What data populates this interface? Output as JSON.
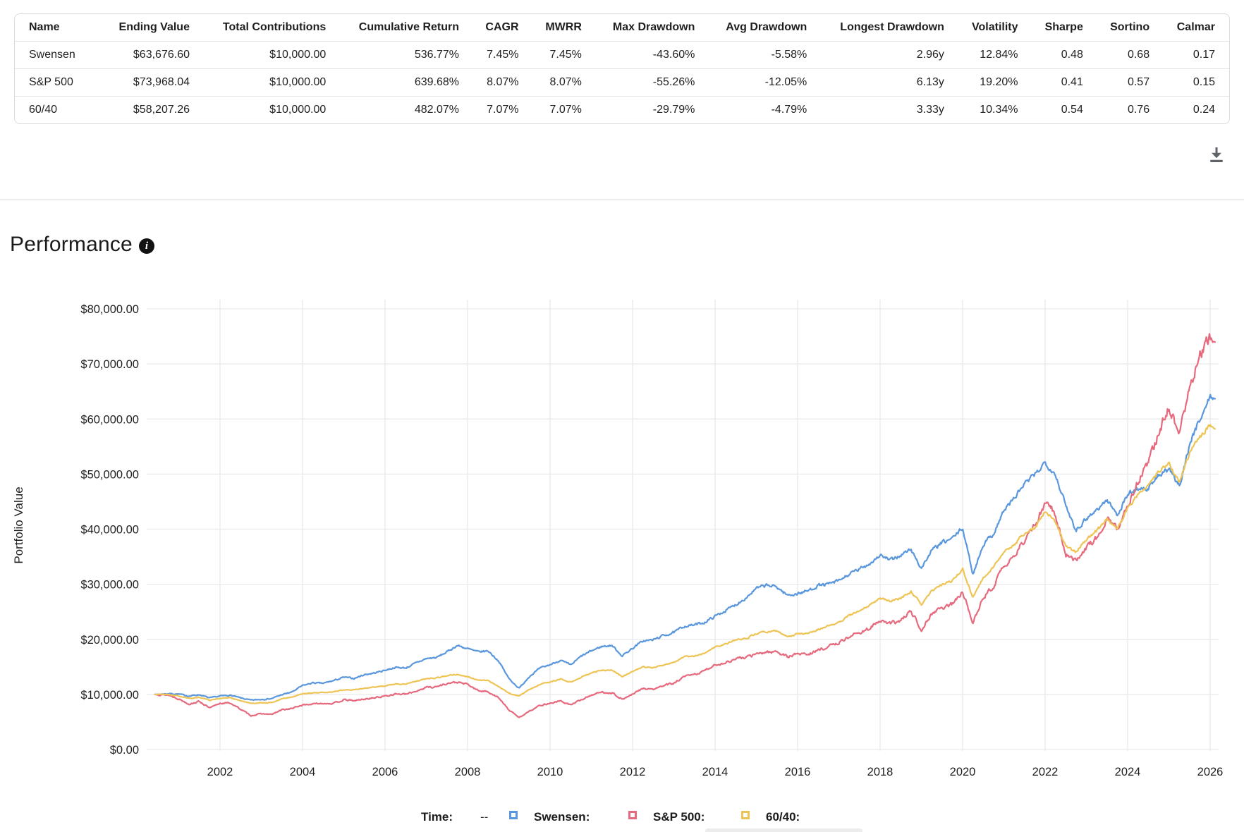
{
  "table": {
    "columns": [
      "Name",
      "Ending Value",
      "Total Contributions",
      "Cumulative Return",
      "CAGR",
      "MWRR",
      "Max Drawdown",
      "Avg Drawdown",
      "Longest Drawdown",
      "Volatility",
      "Sharpe",
      "Sortino",
      "Calmar"
    ],
    "rows": [
      [
        "Swensen",
        "$63,676.60",
        "$10,000.00",
        "536.77%",
        "7.45%",
        "7.45%",
        "-43.60%",
        "-5.58%",
        "2.96y",
        "12.84%",
        "0.48",
        "0.68",
        "0.17"
      ],
      [
        "S&P 500",
        "$73,968.04",
        "$10,000.00",
        "639.68%",
        "8.07%",
        "8.07%",
        "-55.26%",
        "-12.05%",
        "6.13y",
        "19.20%",
        "0.41",
        "0.57",
        "0.15"
      ],
      [
        "60/40",
        "$58,207.26",
        "$10,000.00",
        "482.07%",
        "7.07%",
        "7.07%",
        "-29.79%",
        "-4.79%",
        "3.33y",
        "10.34%",
        "0.54",
        "0.76",
        "0.24"
      ]
    ]
  },
  "toolbar": {
    "download_icon": "download-icon"
  },
  "section": {
    "title": "Performance",
    "info_icon": "i"
  },
  "chart_data": {
    "type": "line",
    "title": "Performance",
    "xlabel": "",
    "ylabel": "Portfolio Value",
    "ylim": [
      0,
      80000
    ],
    "grid": true,
    "y_tick_labels": [
      "$0.00",
      "$10,000.00",
      "$20,000.00",
      "$30,000.00",
      "$40,000.00",
      "$50,000.00",
      "$60,000.00",
      "$70,000.00",
      "$80,000.00"
    ],
    "y_tick_values": [
      0,
      10000,
      20000,
      30000,
      40000,
      50000,
      60000,
      70000,
      80000
    ],
    "x_tick_labels": [
      "2002",
      "2004",
      "2006",
      "2008",
      "2010",
      "2012",
      "2014",
      "2016",
      "2018",
      "2020",
      "2022",
      "2024",
      "2026"
    ],
    "x_tick_values": [
      2002,
      2004,
      2006,
      2008,
      2010,
      2012,
      2014,
      2016,
      2018,
      2020,
      2022,
      2024,
      2026
    ],
    "x_range": [
      2000.42,
      2026.12
    ],
    "anchor_start_year": 2000.5,
    "anchor_step_years": 0.25,
    "start_value": 10000,
    "series": [
      {
        "name": "Swensen",
        "color": "#5a97dc",
        "ending_value": 63676.6,
        "anchors": [
          10000,
          10150,
          10050,
          9700,
          9950,
          9350,
          9700,
          9850,
          9350,
          8950,
          9100,
          9250,
          9950,
          10450,
          11600,
          12100,
          12000,
          12500,
          13100,
          12900,
          13600,
          13900,
          14400,
          14900,
          14800,
          15700,
          16500,
          16700,
          17700,
          18900,
          18300,
          17700,
          17900,
          16100,
          12900,
          11100,
          13300,
          14700,
          15400,
          16200,
          15300,
          16900,
          17900,
          18700,
          18900,
          17000,
          18400,
          19700,
          19900,
          20700,
          21200,
          22400,
          22600,
          23100,
          24200,
          25200,
          26300,
          27600,
          29200,
          29800,
          29500,
          28000,
          28300,
          28800,
          29800,
          30000,
          30600,
          31800,
          32700,
          33800,
          35300,
          34300,
          35300,
          36300,
          32900,
          36100,
          37500,
          38300,
          40200,
          31800,
          37300,
          39200,
          43400,
          45600,
          48200,
          49800,
          52200,
          50000,
          44200,
          39900,
          42000,
          43500,
          45300,
          42600,
          46300,
          47500,
          47300,
          49800,
          50800,
          47800,
          55300,
          60100,
          63900
        ]
      },
      {
        "name": "S&P 500",
        "color": "#e66a7e",
        "ending_value": 73968.04,
        "anchors": [
          10000,
          9900,
          9200,
          8250,
          8750,
          7500,
          8400,
          8450,
          7300,
          6150,
          6500,
          6350,
          7200,
          7450,
          8100,
          8250,
          8400,
          8350,
          9000,
          8850,
          9150,
          9400,
          9700,
          10100,
          10000,
          10600,
          11300,
          11400,
          12000,
          12200,
          11800,
          10700,
          10500,
          9400,
          7200,
          5800,
          7000,
          8000,
          8400,
          8800,
          8100,
          9000,
          9900,
          10400,
          10300,
          9100,
          10000,
          11100,
          10900,
          11600,
          12000,
          13200,
          13600,
          14300,
          15400,
          15700,
          16500,
          16700,
          17300,
          17700,
          17800,
          16800,
          17400,
          17300,
          18000,
          18700,
          19400,
          20500,
          21200,
          22100,
          23300,
          22800,
          23400,
          25100,
          21800,
          24700,
          25800,
          26300,
          28600,
          23200,
          27400,
          29800,
          33100,
          35100,
          38100,
          40500,
          45000,
          42800,
          35500,
          34300,
          36800,
          38500,
          41800,
          39800,
          44600,
          48600,
          52000,
          57500,
          62300,
          57300,
          65500,
          71500,
          74800
        ]
      },
      {
        "name": "60/40",
        "color": "#edc455",
        "ending_value": 58207.26,
        "anchors": [
          10000,
          10000,
          9700,
          9250,
          9500,
          8950,
          9300,
          9400,
          8850,
          8350,
          8500,
          8500,
          9200,
          9500,
          10100,
          10250,
          10350,
          10450,
          10900,
          10850,
          11100,
          11300,
          11600,
          11900,
          11900,
          12400,
          12900,
          13000,
          13400,
          13600,
          13200,
          12600,
          12500,
          11500,
          10200,
          9700,
          10900,
          11800,
          12300,
          12800,
          12200,
          13100,
          13900,
          14400,
          14400,
          13200,
          14100,
          15000,
          14900,
          15400,
          15800,
          16800,
          17000,
          17500,
          18600,
          19100,
          19900,
          20200,
          21000,
          21400,
          21500,
          20400,
          21000,
          21000,
          21800,
          22400,
          23100,
          24300,
          25200,
          26200,
          27500,
          26800,
          27500,
          28600,
          26300,
          28800,
          29900,
          30600,
          32800,
          27500,
          31200,
          33000,
          35900,
          37300,
          39200,
          40300,
          43300,
          41300,
          36800,
          35800,
          38200,
          39600,
          41900,
          39900,
          43900,
          46300,
          47900,
          50400,
          51900,
          48600,
          53800,
          56700,
          58900
        ]
      }
    ],
    "legend_position": "bottom"
  },
  "legend": {
    "time_label": "Time:",
    "time_value": "--",
    "items": [
      {
        "label": "Swensen:",
        "color": "#5a97dc"
      },
      {
        "label": "S&P 500:",
        "color": "#e66a7e"
      },
      {
        "label": "60/40:",
        "color": "#edc455"
      }
    ]
  },
  "colors": {
    "grid": "#e9e9e9",
    "card_border": "#dadce0",
    "icon_gray": "#5f6368"
  }
}
